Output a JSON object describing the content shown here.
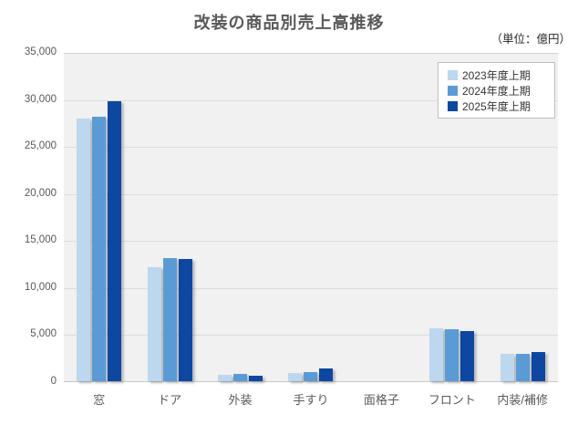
{
  "title": "改装の商品別売上高推移",
  "unit_label": "（単位：億円）",
  "colors": {
    "series": [
      "#BDD7EE",
      "#5B9BD5",
      "#0D47A1"
    ],
    "title_text": "#595959",
    "axis_text": "#595959",
    "plot_background": "#F1F1F1",
    "gridline": "#DCDCDC",
    "legend_border": "#BFBFBF"
  },
  "legend": {
    "items": [
      {
        "label": "2023年度上期",
        "color": "#BDD7EE"
      },
      {
        "label": "2024年度上期",
        "color": "#5B9BD5"
      },
      {
        "label": "2025年度上期",
        "color": "#0D47A1"
      }
    ]
  },
  "chart_data": {
    "type": "bar",
    "title": "改装の商品別売上高推移",
    "unit": "億円",
    "categories": [
      "窓",
      "ドア",
      "外装",
      "手すり",
      "面格子",
      "フロント",
      "内装/補修"
    ],
    "series": [
      {
        "name": "2023年度上期",
        "values": [
          27900,
          12100,
          700,
          900,
          0,
          5600,
          2900
        ]
      },
      {
        "name": "2024年度上期",
        "values": [
          28100,
          13100,
          800,
          1000,
          0,
          5500,
          2950
        ]
      },
      {
        "name": "2025年度上期",
        "values": [
          29800,
          13000,
          600,
          1400,
          0,
          5300,
          3100
        ]
      }
    ],
    "ylim": [
      0,
      35000
    ],
    "ytick_interval": 5000,
    "ytick_labels": [
      "0",
      "5,000",
      "10,000",
      "15,000",
      "20,000",
      "25,000",
      "30,000",
      "35,000"
    ],
    "grid": true,
    "legend_position": "top-right"
  }
}
